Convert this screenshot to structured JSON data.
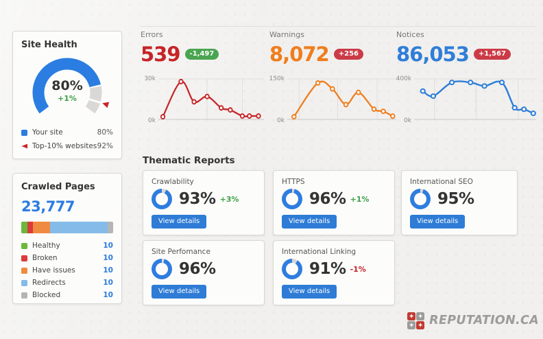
{
  "page": {
    "background": "#f1f0ee"
  },
  "site_health": {
    "title": "Site Health",
    "value_label": "80%",
    "delta": "+1%",
    "delta_color": "#3fa044",
    "legend": [
      {
        "label": "Your site",
        "value": "80%",
        "color": "#2b7de1"
      },
      {
        "label": "Top-10% websites",
        "value": "92%",
        "color": "#c62428"
      }
    ]
  },
  "crawled_pages": {
    "title": "Crawled Pages",
    "total": "23,777",
    "total_color": "#2b7ce0",
    "value_color": "#2b7ce0",
    "legend": [
      {
        "label": "Healthy",
        "value": "10",
        "color": "#6cb83d"
      },
      {
        "label": "Broken",
        "value": "10",
        "color": "#db3b3b"
      },
      {
        "label": "Have issues",
        "value": "10",
        "color": "#ef8b41"
      },
      {
        "label": "Redirects",
        "value": "10",
        "color": "#84bbe8"
      },
      {
        "label": "Blocked",
        "value": "10",
        "color": "#b5b5b5"
      }
    ]
  },
  "stats": [
    {
      "label": "Errors",
      "value": "539",
      "value_color": "#c62428",
      "badge": "-1,497",
      "badge_color": "#4aa551"
    },
    {
      "label": "Warnings",
      "value": "8,072",
      "value_color": "#ef7d1d",
      "badge": "+256",
      "badge_color": "#cb3b47"
    },
    {
      "label": "Notices",
      "value": "86,053",
      "value_color": "#2f7ed8",
      "badge": "+1,567",
      "badge_color": "#cb3b47"
    }
  ],
  "thematic": {
    "heading": "Thematic Reports",
    "button_label": "View details",
    "button_color": "#2e7cd6",
    "cards": [
      {
        "title": "Crawlability",
        "value": "93%",
        "delta": "+3%",
        "delta_color": "#3fa044"
      },
      {
        "title": "HTTPS",
        "value": "96%",
        "delta": "+1%",
        "delta_color": "#3fa044"
      },
      {
        "title": "International SEO",
        "value": "95%",
        "delta": "",
        "delta_color": ""
      },
      {
        "title": "Site Perfomance",
        "value": "96%",
        "delta": "",
        "delta_color": ""
      },
      {
        "title": "International Linking",
        "value": "91%",
        "delta": "-1%",
        "delta_color": "#c62428"
      }
    ]
  },
  "logo": {
    "text": "REPUTATION.CA",
    "red": "#c13a30",
    "gray": "#9b9b9b"
  },
  "chart_data": [
    {
      "id": "site-health-gauge",
      "type": "gauge",
      "value": 80,
      "max": 100,
      "benchmark": 92,
      "color": "#2b7de1",
      "track": "#d9d8d6",
      "marker_color": "#c62428"
    },
    {
      "id": "errors-trend",
      "type": "line",
      "name": "Errors",
      "color": "#c62428",
      "ymax": 30000,
      "ytop_label": "30k",
      "ybottom_label": "0k",
      "x": [
        0.02,
        0.2,
        0.33,
        0.46,
        0.6,
        0.69,
        0.81,
        0.88,
        0.97
      ],
      "y": [
        2000,
        28000,
        13000,
        17000,
        8500,
        7000,
        2500,
        2500,
        2500
      ],
      "gridx": [
        0.46,
        0.81
      ]
    },
    {
      "id": "warnings-trend",
      "type": "line",
      "name": "Warnings",
      "color": "#ef7d1d",
      "ymax": 150000,
      "ytop_label": "150k",
      "ybottom_label": "0k",
      "x": [
        0.04,
        0.27,
        0.41,
        0.54,
        0.66,
        0.81,
        0.9,
        0.99
      ],
      "y": [
        10000,
        135000,
        113000,
        55000,
        100000,
        38000,
        30000,
        12000
      ],
      "gridx": [
        0.09,
        0.46,
        0.84
      ]
    },
    {
      "id": "notices-trend",
      "type": "line",
      "name": "Notices",
      "color": "#2f7ed8",
      "ymax": 400000,
      "ytop_label": "400k",
      "ybottom_label": "0k",
      "x": [
        0.05,
        0.14,
        0.3,
        0.46,
        0.58,
        0.73,
        0.84,
        0.92,
        1.0
      ],
      "y": [
        280000,
        230000,
        365000,
        365000,
        330000,
        365000,
        115000,
        100000,
        60000
      ],
      "gridx": [
        0.15,
        0.51,
        0.87
      ]
    },
    {
      "id": "crawled-pages-bar",
      "type": "stacked-bar",
      "segments": [
        {
          "label": "Healthy",
          "pct": 7,
          "color": "#6cb83d"
        },
        {
          "label": "Broken",
          "pct": 6,
          "color": "#db3b3b"
        },
        {
          "label": "Have issues",
          "pct": 18,
          "color": "#ef8b41"
        },
        {
          "label": "Redirects",
          "pct": 63,
          "color": "#84bbe8"
        },
        {
          "label": "Blocked",
          "pct": 6,
          "color": "#b5b5b5"
        }
      ]
    },
    {
      "id": "donut-crawlability",
      "type": "donut",
      "value": 93,
      "color": "#2e7de0",
      "track": "#d9d8d6"
    },
    {
      "id": "donut-https",
      "type": "donut",
      "value": 96,
      "color": "#2e7de0",
      "track": "#d9d8d6"
    },
    {
      "id": "donut-international-seo",
      "type": "donut",
      "value": 95,
      "color": "#2e7de0",
      "track": "#d9d8d6"
    },
    {
      "id": "donut-site-performance",
      "type": "donut",
      "value": 96,
      "color": "#2e7de0",
      "track": "#d9d8d6"
    },
    {
      "id": "donut-international-linking",
      "type": "donut",
      "value": 91,
      "color": "#2e7de0",
      "track": "#d9d8d6"
    }
  ]
}
